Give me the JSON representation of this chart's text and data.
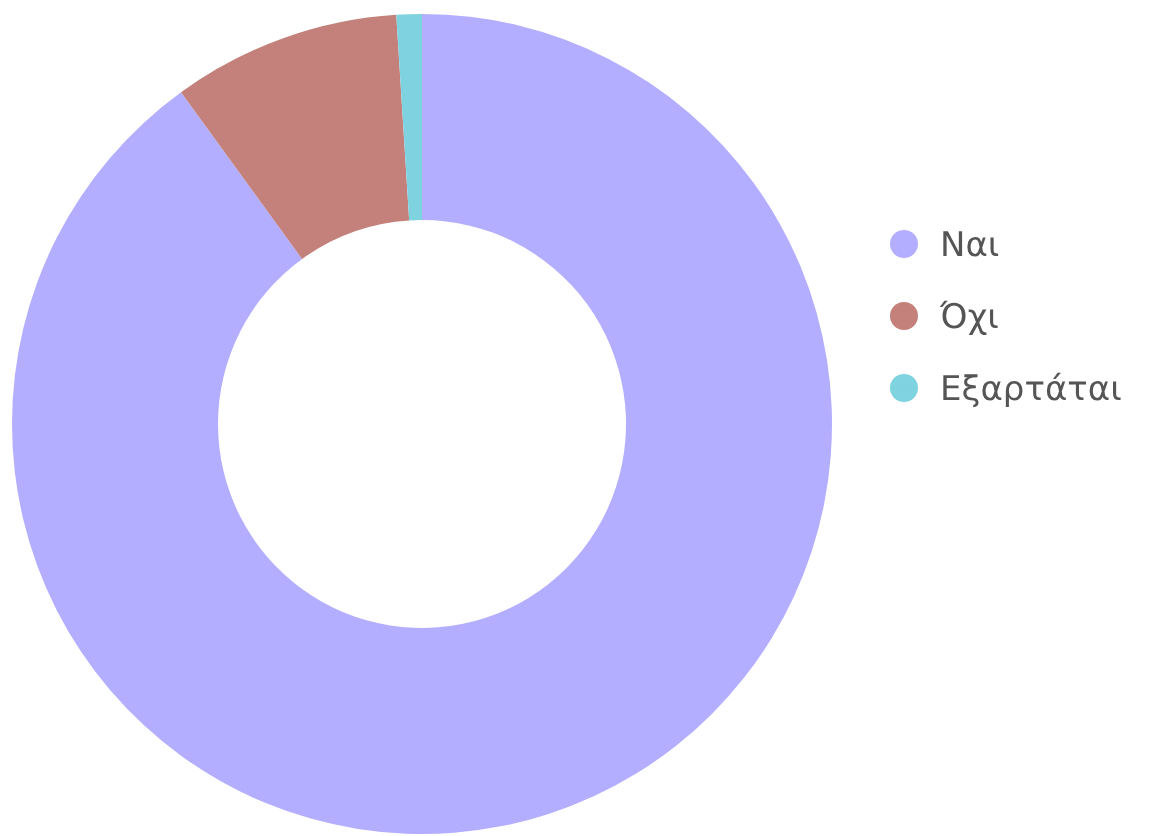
{
  "chart_data": {
    "type": "donut",
    "categories": [
      "Ναι",
      "Όχι",
      "Εξαρτάται"
    ],
    "values": [
      90,
      9,
      1
    ],
    "colors": [
      "#b3aeff",
      "#c4807a",
      "#7fd3e0"
    ],
    "legend": "right"
  }
}
